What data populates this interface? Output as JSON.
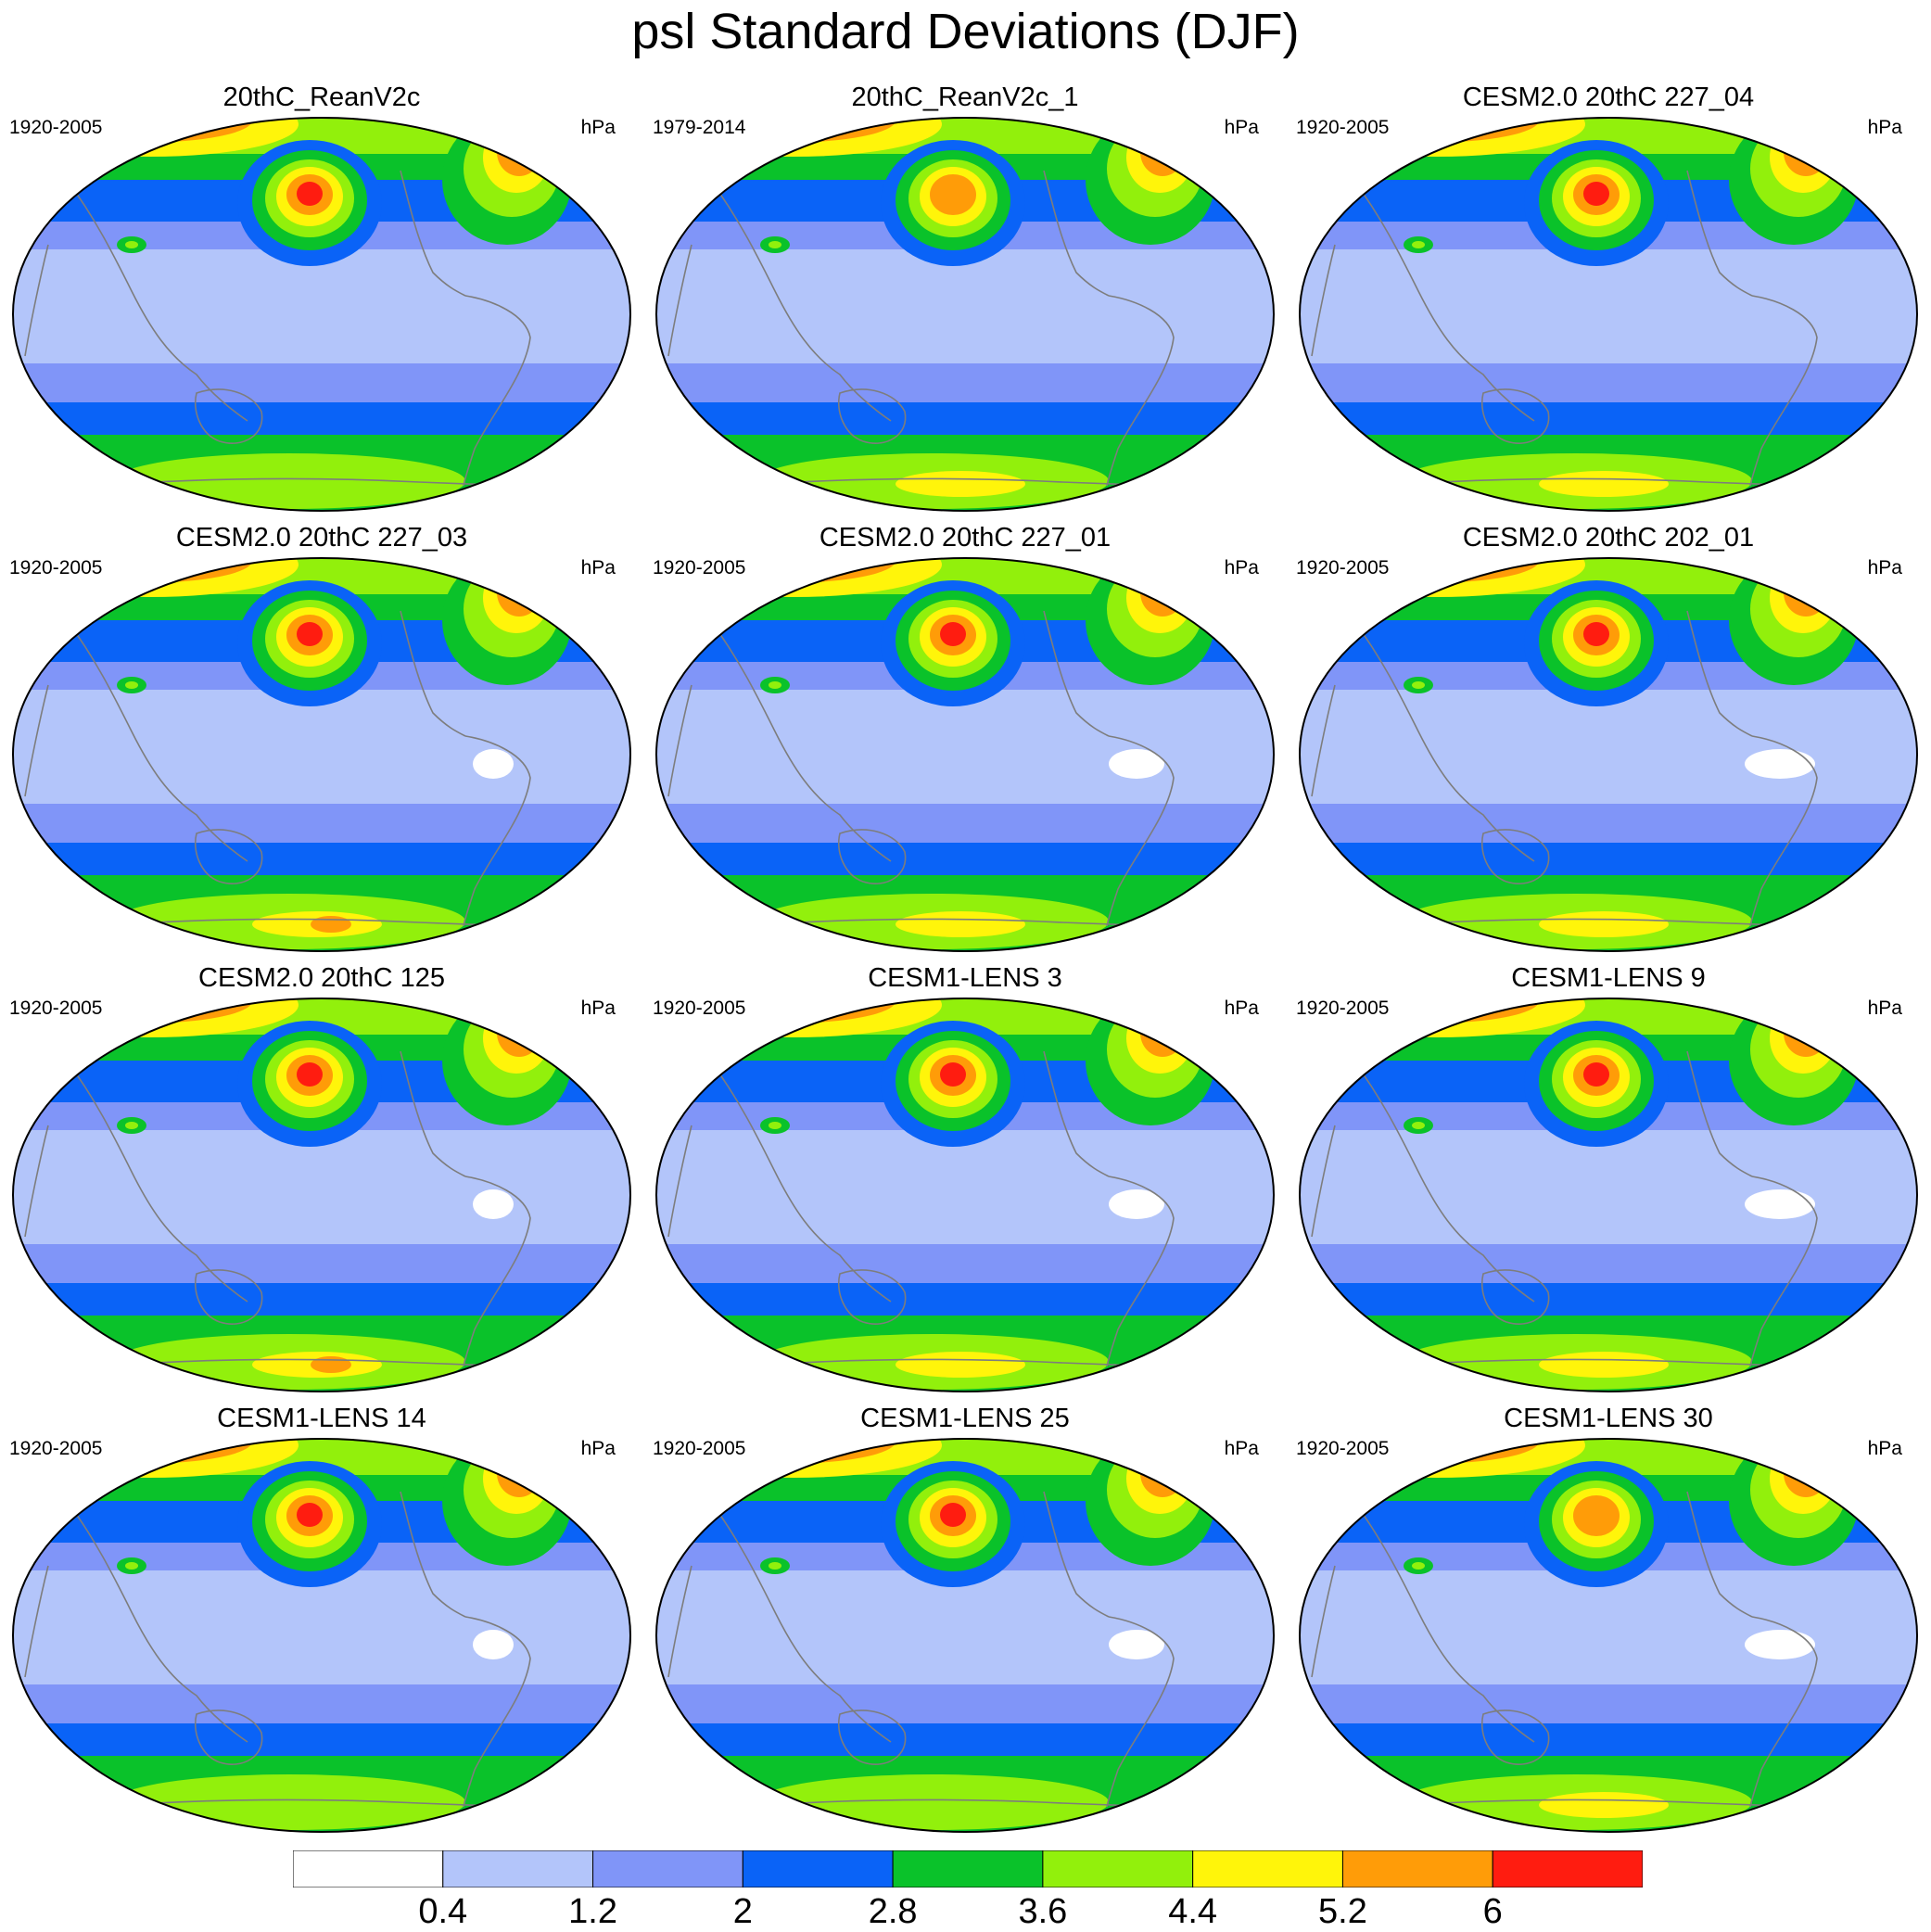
{
  "title": "psl Standard Deviations (DJF)",
  "units": "hPa",
  "colorbar": {
    "levels": [
      "0.4",
      "1.2",
      "2",
      "2.8",
      "3.6",
      "4.4",
      "5.2",
      "6"
    ],
    "colors": [
      "#ffffff",
      "#b3c5fa",
      "#8095f8",
      "#0a63f7",
      "#0ac22a",
      "#92f00c",
      "#fff50a",
      "#ff9c08",
      "#ff1c10"
    ]
  },
  "panels": [
    {
      "title": "20thC_ReanV2c",
      "period": "1920-2005",
      "units": "hPa",
      "npac_peak": 3,
      "natl_peak": 2,
      "arctic": 2,
      "so": 0
    },
    {
      "title": "20thC_ReanV2c_1",
      "period": "1979-2014",
      "units": "hPa",
      "npac_peak": 2,
      "natl_peak": 3,
      "arctic": 3,
      "so": 1
    },
    {
      "title": "CESM2.0 20thC 227_04",
      "period": "1920-2005",
      "units": "hPa",
      "npac_peak": 3,
      "natl_peak": 2,
      "arctic": 3,
      "so": 1
    },
    {
      "title": "CESM2.0 20thC 227_03",
      "period": "1920-2005",
      "units": "hPa",
      "npac_peak": 3,
      "natl_peak": 2,
      "arctic": 3,
      "so": 2
    },
    {
      "title": "CESM2.0 20thC 227_01",
      "period": "1920-2005",
      "units": "hPa",
      "npac_peak": 3,
      "natl_peak": 3,
      "arctic": 3,
      "so": 1
    },
    {
      "title": "CESM2.0 20thC 202_01",
      "period": "1920-2005",
      "units": "hPa",
      "npac_peak": 3,
      "natl_peak": 3,
      "arctic": 3,
      "so": 1
    },
    {
      "title": "CESM2.0 20thC 125",
      "period": "1920-2005",
      "units": "hPa",
      "npac_peak": 3,
      "natl_peak": 2,
      "arctic": 3,
      "so": 2
    },
    {
      "title": "CESM1-LENS 3",
      "period": "1920-2005",
      "units": "hPa",
      "npac_peak": 3,
      "natl_peak": 3,
      "arctic": 3,
      "so": 1
    },
    {
      "title": "CESM1-LENS 9",
      "period": "1920-2005",
      "units": "hPa",
      "npac_peak": 3,
      "natl_peak": 2,
      "arctic": 3,
      "so": 1
    },
    {
      "title": "CESM1-LENS 14",
      "period": "1920-2005",
      "units": "hPa",
      "npac_peak": 3,
      "natl_peak": 2,
      "arctic": 2,
      "so": 0
    },
    {
      "title": "CESM1-LENS 25",
      "period": "1920-2005",
      "units": "hPa",
      "npac_peak": 3,
      "natl_peak": 3,
      "arctic": 3,
      "so": 0
    },
    {
      "title": "CESM1-LENS 30",
      "period": "1920-2005",
      "units": "hPa",
      "npac_peak": 2,
      "natl_peak": 2,
      "arctic": 3,
      "so": 1
    }
  ]
}
